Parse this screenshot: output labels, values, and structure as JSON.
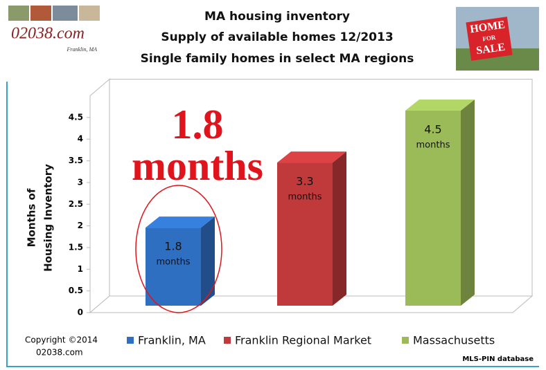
{
  "header": {
    "logo_text": "02038.com",
    "logo_subtext": "Franklin, MA",
    "sign_text": [
      "HOME",
      "FOR",
      "SALE"
    ]
  },
  "chart_data": {
    "type": "bar",
    "title": "MA housing inventory",
    "subtitle": [
      "Supply of available homes 12/2013",
      "Single family homes in select MA regions"
    ],
    "y_label": [
      "Months of",
      "Housing Inventory"
    ],
    "categories": [
      null
    ],
    "series": [
      {
        "name": "Franklin, MA",
        "color": "#2f6fc2",
        "values": [
          1.8
        ]
      },
      {
        "name": "Franklin Regional Market",
        "color": "#c0393b",
        "values": [
          3.3
        ]
      },
      {
        "name": "Massachusetts",
        "color": "#9bbb59",
        "values": [
          4.5
        ]
      }
    ],
    "data_label_unit": "months",
    "annotation": "1.8 months",
    "ylim": [
      0,
      5
    ],
    "yticks": [
      0,
      0.5,
      1,
      1.5,
      2,
      2.5,
      3,
      3.5,
      4,
      4.5
    ],
    "grid": false,
    "legend": "bottom",
    "footer": {
      "copyright": [
        "Copyright ©2014",
        "02038.com"
      ],
      "source": "MLS-PIN database"
    }
  }
}
